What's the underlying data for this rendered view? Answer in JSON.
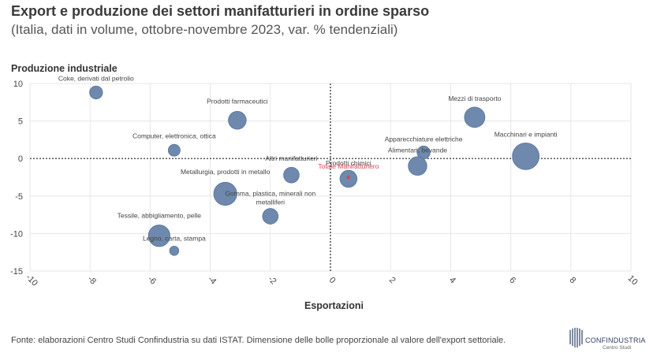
{
  "chart_data": {
    "type": "scatter",
    "title": "Export e produzione dei settori manifatturieri in ordine sparso",
    "subtitle": "(Italia, dati in volume, ottobre-novembre 2023, var. % tendenziali)",
    "xlabel": "Esportazioni",
    "ylabel": "Produzione industriale",
    "xlim": [
      -10,
      10
    ],
    "ylim": [
      -15,
      10
    ],
    "xticks": [
      -10,
      -8,
      -6,
      -4,
      -2,
      0,
      2,
      4,
      6,
      8,
      10
    ],
    "yticks": [
      10,
      5,
      0,
      -5,
      -10,
      -15
    ],
    "grid": true,
    "size_note": "bubble size proportional to sector export value",
    "points": [
      {
        "label": "Coke, derivati dal petrolio",
        "x": -7.8,
        "y": 8.8,
        "size": 0.35,
        "highlight": false
      },
      {
        "label": "Prodotti farmaceutici",
        "x": -3.1,
        "y": 5.1,
        "size": 0.48,
        "highlight": false
      },
      {
        "label": "Computer, elettronica, ottica",
        "x": -5.2,
        "y": 1.1,
        "size": 0.32,
        "highlight": false
      },
      {
        "label": "Altri manifatturieri",
        "x": -1.3,
        "y": -2.2,
        "size": 0.42,
        "highlight": false
      },
      {
        "label": "Metallurgia, prodotti in metallo",
        "x": -3.5,
        "y": -4.7,
        "size": 0.62,
        "highlight": false
      },
      {
        "label": "Gomma, plastica, minerali non metalliferi",
        "x": -2.0,
        "y": -7.7,
        "size": 0.42,
        "highlight": false
      },
      {
        "label": "Tessile, abbigliamento, pelle",
        "x": -5.7,
        "y": -10.3,
        "size": 0.58,
        "highlight": false
      },
      {
        "label": "Legno, carta, stampa",
        "x": -5.2,
        "y": -12.3,
        "size": 0.25,
        "highlight": false
      },
      {
        "label": "Prodotti chimici",
        "x": 0.6,
        "y": -2.7,
        "size": 0.46,
        "highlight": false
      },
      {
        "label": "Totale Manifatturiero",
        "x": 0.6,
        "y": -2.5,
        "size": 0.12,
        "highlight": true
      },
      {
        "label": "Mezzi di trasporto",
        "x": 4.8,
        "y": 5.5,
        "size": 0.55,
        "highlight": false
      },
      {
        "label": "Apparecchiature elettriche",
        "x": 3.1,
        "y": 0.8,
        "size": 0.35,
        "highlight": false
      },
      {
        "label": "Alimentari, bevande",
        "x": 2.9,
        "y": -1.0,
        "size": 0.5,
        "highlight": false
      },
      {
        "label": "Macchinari e impianti",
        "x": 6.5,
        "y": 0.3,
        "size": 0.72,
        "highlight": false
      }
    ],
    "colors": {
      "bubble": "#6e89ad",
      "bubble_stroke": "#5a759a",
      "highlight": "#d9434f",
      "grid": "#e6e6e6",
      "zero_line": "#222222"
    }
  },
  "source": "Fonte: elaborazioni Centro Studi Confindustria su dati ISTAT. Dimensione delle bolle proporzionale al valore dell'export settoriale.",
  "logo": {
    "name": "CONFINDUSTRIA",
    "sub": "Centro Studi"
  }
}
